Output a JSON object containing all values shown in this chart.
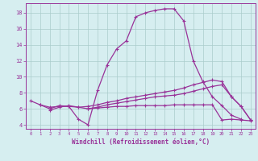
{
  "xlabel": "Windchill (Refroidissement éolien,°C)",
  "background_color": "#d6eef0",
  "grid_color": "#aacccc",
  "line_color": "#993399",
  "xlim": [
    -0.5,
    23.5
  ],
  "ylim": [
    3.5,
    19.2
  ],
  "yticks": [
    4,
    6,
    8,
    10,
    12,
    14,
    16,
    18
  ],
  "curve1_x": [
    0,
    1,
    2,
    3,
    4,
    5,
    6,
    7,
    8,
    9,
    10,
    11,
    12,
    13,
    14,
    15,
    16,
    17,
    18,
    19,
    20,
    21,
    22
  ],
  "curve1_y": [
    7.0,
    6.5,
    6.0,
    6.4,
    6.3,
    4.7,
    4.0,
    8.3,
    11.5,
    13.5,
    14.5,
    17.5,
    18.0,
    18.3,
    18.5,
    18.5,
    17.0,
    12.0,
    9.4,
    7.5,
    6.4,
    5.2,
    4.7
  ],
  "curve2_x": [
    1,
    2,
    3,
    4,
    5,
    6,
    7,
    8,
    9,
    10,
    11,
    12,
    13,
    14,
    15,
    16,
    17,
    18,
    19,
    20,
    21,
    22,
    23
  ],
  "curve2_y": [
    6.5,
    6.2,
    6.3,
    6.3,
    6.2,
    6.3,
    6.5,
    6.8,
    7.0,
    7.3,
    7.5,
    7.7,
    7.9,
    8.1,
    8.3,
    8.6,
    9.0,
    9.3,
    9.6,
    9.4,
    7.5,
    6.3,
    4.6
  ],
  "curve3_x": [
    2,
    3,
    4,
    5,
    6,
    7,
    8,
    9,
    10,
    11,
    12,
    13,
    14,
    15,
    16,
    17,
    18,
    19,
    20,
    21,
    22,
    23
  ],
  "curve3_y": [
    5.8,
    6.2,
    6.4,
    6.2,
    6.0,
    6.2,
    6.5,
    6.7,
    6.9,
    7.1,
    7.3,
    7.5,
    7.6,
    7.7,
    7.9,
    8.2,
    8.5,
    8.8,
    9.0,
    7.5,
    6.3,
    4.6
  ],
  "curve4_x": [
    6,
    7,
    8,
    9,
    10,
    11,
    12,
    13,
    14,
    15,
    16,
    17,
    18,
    19,
    20,
    21,
    22,
    23
  ],
  "curve4_y": [
    6.0,
    6.1,
    6.2,
    6.3,
    6.3,
    6.4,
    6.4,
    6.4,
    6.4,
    6.5,
    6.5,
    6.5,
    6.5,
    6.5,
    4.6,
    4.7,
    4.6,
    4.5
  ],
  "marker": "+",
  "markersize": 3,
  "linewidth": 0.9
}
